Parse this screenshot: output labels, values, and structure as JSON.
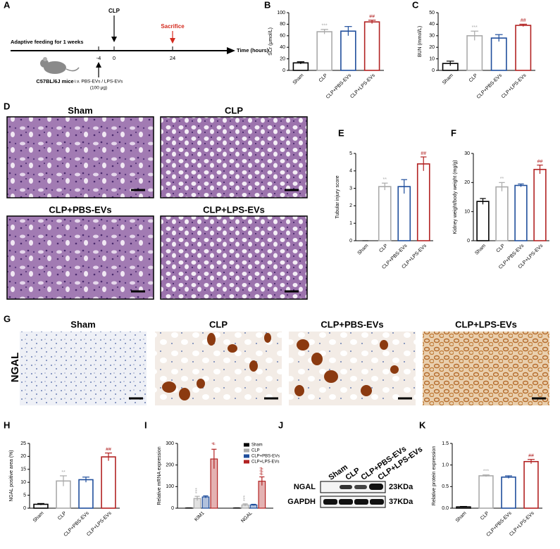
{
  "panel_labels": [
    "A",
    "B",
    "C",
    "D",
    "E",
    "F",
    "G",
    "H",
    "I",
    "J",
    "K"
  ],
  "timeline": {
    "feeding": "Adaptive feeding for 1 weeks",
    "clp": "CLP",
    "sacrifice": "Sacrifice",
    "axis": "Time (hours)",
    "ticks": [
      "-4",
      "0",
      "24"
    ],
    "mice": "C57BL/6J mice",
    "injection": "i.v. PBS-EVs / LPS-EVs",
    "dose": "(100 μg)"
  },
  "histology": {
    "titles": [
      "Sham",
      "CLP",
      "CLP+PBS-EVs",
      "CLP+LPS-EVs"
    ]
  },
  "ihc": {
    "stain": "NGAL",
    "titles": [
      "Sham",
      "CLP",
      "CLP+PBS-EVs",
      "CLP+LPS-EVs"
    ]
  },
  "blot": {
    "lanes": [
      "Sham",
      "CLP",
      "CLP+PBS-EVs",
      "CLP+LPS-EVs"
    ],
    "rows": [
      "NGAL",
      "GAPDH"
    ],
    "sizes": [
      "23KDa",
      "37KDa"
    ]
  },
  "chart_data": [
    {
      "type": "bar",
      "ylabel": "SCr (μmol/L)",
      "categories": [
        "Sham",
        "CLP",
        "CLP+PBS-EVs",
        "CLP+LPS-EVs"
      ],
      "colors": [
        "#000000",
        "#aaaaaa",
        "#1f4e9c",
        "#b22222"
      ],
      "values": [
        13,
        67,
        68,
        84
      ],
      "errors": [
        2,
        4,
        8,
        3
      ],
      "annotations": [
        null,
        "***",
        null,
        "##"
      ],
      "ylim": [
        0,
        100
      ],
      "yticks": [
        0,
        20,
        40,
        60,
        80,
        100
      ]
    },
    {
      "type": "bar",
      "ylabel": "BUN (mmol/L)",
      "categories": [
        "Sham",
        "CLP",
        "CLP+PBS-EVs",
        "CLP+LPS-EVs"
      ],
      "colors": [
        "#000000",
        "#aaaaaa",
        "#1f4e9c",
        "#b22222"
      ],
      "values": [
        6,
        30,
        28,
        39
      ],
      "errors": [
        2,
        4,
        3,
        1
      ],
      "annotations": [
        null,
        "***",
        null,
        "##"
      ],
      "ylim": [
        0,
        50
      ],
      "yticks": [
        0,
        10,
        20,
        30,
        40,
        50
      ]
    },
    {
      "type": "bar",
      "ylabel": "Tubular injury score",
      "categories": [
        "Sham",
        "CLP",
        "CLP+PBS-EVs",
        "CLP+LPS-EVs"
      ],
      "colors": [
        "#000000",
        "#aaaaaa",
        "#1f4e9c",
        "#b22222"
      ],
      "values": [
        0,
        3.1,
        3.1,
        4.4
      ],
      "errors": [
        0,
        0.2,
        0.4,
        0.4
      ],
      "annotations": [
        null,
        "**",
        null,
        "##"
      ],
      "ylim": [
        0,
        5
      ],
      "yticks": [
        0,
        1,
        2,
        3,
        4,
        5
      ]
    },
    {
      "type": "bar",
      "ylabel": "Kidney weight/body weight (mg/g)",
      "categories": [
        "Sham",
        "CLP",
        "CLP+PBS-EVs",
        "CLP+LPS-EVs"
      ],
      "colors": [
        "#000000",
        "#aaaaaa",
        "#1f4e9c",
        "#b22222"
      ],
      "values": [
        13.5,
        18.5,
        19,
        24.5
      ],
      "errors": [
        1,
        1.5,
        0.5,
        1.5
      ],
      "annotations": [
        null,
        "**",
        null,
        "##"
      ],
      "ylim": [
        0,
        30
      ],
      "yticks": [
        0,
        10,
        20,
        30
      ]
    },
    {
      "type": "bar",
      "ylabel": "NGAL positive area (%)",
      "categories": [
        "Sham",
        "CLP",
        "CLP+PBS-EVs",
        "CLP+LPS-EVs"
      ],
      "colors": [
        "#000000",
        "#aaaaaa",
        "#1f4e9c",
        "#b22222"
      ],
      "values": [
        1.5,
        10.5,
        11,
        19.8
      ],
      "errors": [
        0.3,
        2,
        1,
        1.5
      ],
      "annotations": [
        null,
        "**",
        null,
        "##"
      ],
      "ylim": [
        0,
        25
      ],
      "yticks": [
        0,
        5,
        10,
        15,
        20,
        25
      ]
    },
    {
      "type": "grouped",
      "ylabel": "Relative mRNA expression",
      "categories": [
        "KIM1",
        "NGAL"
      ],
      "series": [
        {
          "name": "Sham",
          "color": "#000000",
          "values": [
            1,
            1
          ],
          "errors": [
            0.5,
            0.5
          ],
          "annotations": [
            null,
            null
          ]
        },
        {
          "name": "CLP",
          "color": "#aaaaaa",
          "values": [
            45,
            15
          ],
          "errors": [
            10,
            5
          ],
          "annotations": [
            "***",
            "***"
          ]
        },
        {
          "name": "CLP+PBS-EVs",
          "color": "#1f4e9c",
          "values": [
            52,
            15
          ],
          "errors": [
            5,
            3
          ],
          "annotations": [
            null,
            null
          ]
        },
        {
          "name": "CLP+LPS-EVs",
          "color": "#b22222",
          "values": [
            228,
            125
          ],
          "errors": [
            45,
            20
          ],
          "annotations": [
            "#",
            "###"
          ]
        }
      ],
      "ylim": [
        0,
        300
      ],
      "yticks": [
        0,
        100,
        200,
        300
      ]
    },
    {
      "type": "bar",
      "ylabel": "Relative protein expression",
      "categories": [
        "Sham",
        "CLP",
        "CLP+PBS-EVs",
        "CLP+LPS-EVs"
      ],
      "colors": [
        "#000000",
        "#aaaaaa",
        "#1f4e9c",
        "#b22222"
      ],
      "values": [
        0.03,
        0.75,
        0.72,
        1.08
      ],
      "errors": [
        0.01,
        0.02,
        0.03,
        0.05
      ],
      "annotations": [
        null,
        "***",
        null,
        "##"
      ],
      "ylim": [
        0,
        1.5
      ],
      "yticks": [
        {
          "value": 0,
          "label": "0.0"
        },
        {
          "value": 0.5,
          "label": "0.5"
        },
        {
          "value": 1,
          "label": "1.0"
        },
        {
          "value": 1.5,
          "label": "1.5"
        }
      ]
    }
  ]
}
